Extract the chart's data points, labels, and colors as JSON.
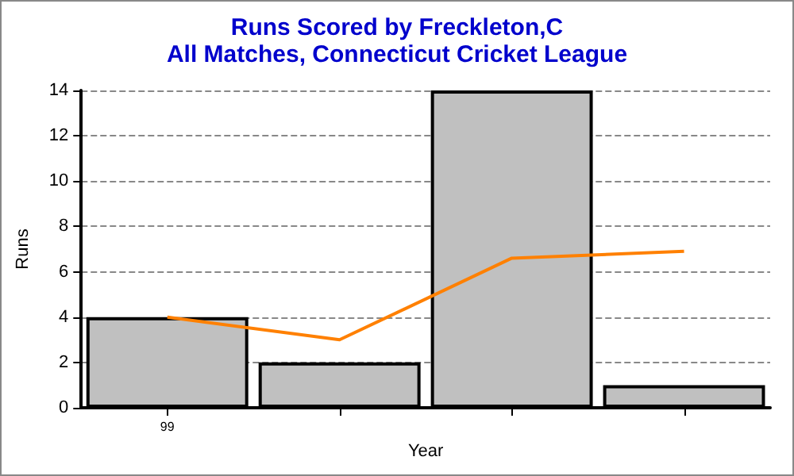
{
  "chart_data": {
    "type": "bar",
    "title": "Runs Scored by Freckleton,C",
    "subtitle": "All Matches, Connecticut Cricket League",
    "xlabel": "Year",
    "ylabel": "Runs",
    "categories": [
      "99",
      null,
      null,
      null
    ],
    "series": [
      {
        "color": "#c0c0c0",
        "values": [
          4,
          2,
          14,
          1
        ]
      },
      {
        "type": "line",
        "color": "#ff8000",
        "values": [
          4,
          3,
          6.6,
          6.9
        ],
        "marker": "none"
      }
    ],
    "ylim": [
      0,
      14
    ],
    "yticks": [
      0,
      2,
      4,
      6,
      8,
      10,
      12,
      14
    ],
    "grid": "y"
  }
}
